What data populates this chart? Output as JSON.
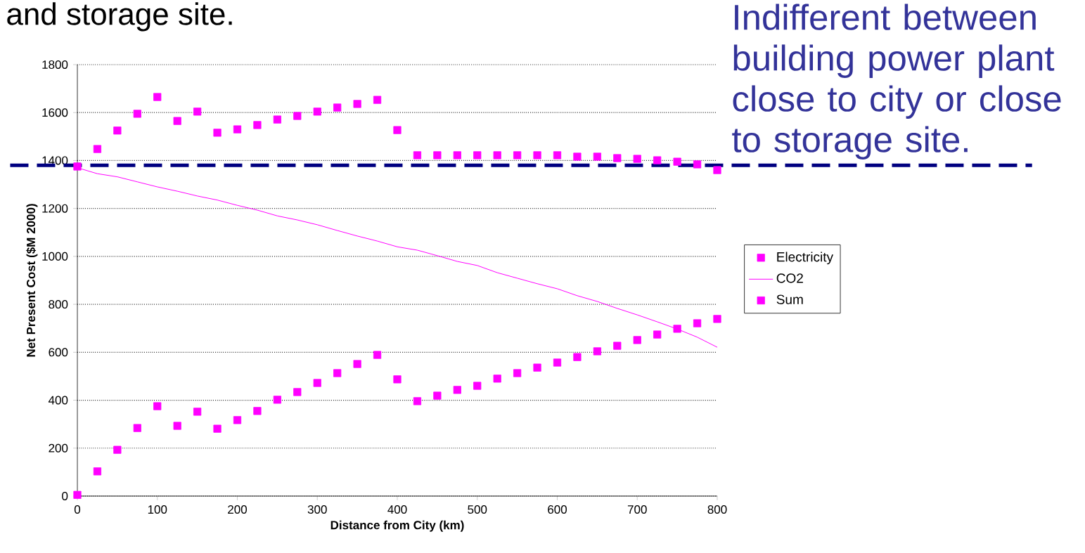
{
  "chart_data": {
    "type": "scatter",
    "title": "and storage site.",
    "xlabel": "Distance from City (km)",
    "ylabel": "Net Present Cost ($M 2000)",
    "annotations": [
      "Indifferent between building power plant close to city or close to storage site."
    ],
    "x": [
      0,
      25,
      50,
      75,
      100,
      125,
      150,
      175,
      200,
      225,
      250,
      275,
      300,
      325,
      350,
      375,
      400,
      425,
      450,
      475,
      500,
      525,
      550,
      575,
      600,
      625,
      650,
      675,
      700,
      725,
      750,
      775,
      800
    ],
    "series": [
      {
        "name": "Electricity",
        "marker": "square",
        "color": "#ff00ff",
        "values": [
          5,
          103,
          193,
          284,
          375,
          293,
          352,
          281,
          317,
          355,
          402,
          434,
          472,
          513,
          551,
          589,
          487,
          396,
          419,
          443,
          460,
          490,
          513,
          536,
          557,
          580,
          604,
          627,
          651,
          674,
          698,
          721,
          739
        ]
      },
      {
        "name": "CO2",
        "type": "line",
        "marker": "none",
        "line_style": "solid",
        "color": "#ff00ff",
        "values": [
          1370,
          1345,
          1332,
          1311,
          1290,
          1272,
          1252,
          1235,
          1213,
          1193,
          1169,
          1152,
          1132,
          1108,
          1085,
          1064,
          1040,
          1026,
          1003,
          979,
          962,
          932,
          909,
          886,
          865,
          836,
          812,
          783,
          756,
          727,
          697,
          663,
          621
        ]
      },
      {
        "name": "Sum",
        "marker": "square",
        "color": "#ff00ff",
        "values": [
          1375,
          1448,
          1525,
          1595,
          1665,
          1565,
          1604,
          1516,
          1530,
          1548,
          1571,
          1586,
          1604,
          1621,
          1636,
          1653,
          1527,
          1422,
          1422,
          1422,
          1422,
          1422,
          1422,
          1422,
          1422,
          1416,
          1416,
          1410,
          1407,
          1401,
          1395,
          1384,
          1360
        ]
      }
    ],
    "ref_lines": [
      {
        "axis": "y",
        "value": 1380,
        "color": "#000080",
        "line_style": "dashed"
      }
    ],
    "xlim": [
      0,
      800
    ],
    "xticks": [
      0,
      100,
      200,
      300,
      400,
      500,
      600,
      700,
      800
    ],
    "ylim": [
      0,
      1800
    ],
    "yticks": [
      0,
      200,
      400,
      600,
      800,
      1000,
      1200,
      1400,
      1600,
      1800
    ],
    "grid": "y",
    "legend": "right"
  }
}
